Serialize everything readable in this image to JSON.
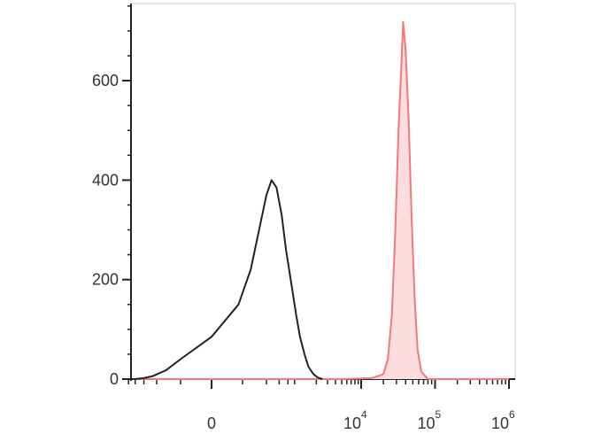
{
  "chart_data": {
    "type": "area",
    "title": "",
    "xlabel": "",
    "ylabel": "",
    "x_scale": "biexponential",
    "x_ticks": [
      {
        "value": 0,
        "base": "0",
        "exp": ""
      },
      {
        "value": 10000,
        "base": "10",
        "exp": "4"
      },
      {
        "value": 100000,
        "base": "10",
        "exp": "5"
      },
      {
        "value": 1000000,
        "base": "10",
        "exp": "6"
      }
    ],
    "y_ticks": [
      {
        "value": 0,
        "label": "0"
      },
      {
        "value": 200,
        "label": "200"
      },
      {
        "value": 400,
        "label": "400"
      },
      {
        "value": 600,
        "label": "600"
      }
    ],
    "ylim": [
      0,
      755
    ],
    "grid": false,
    "legend": "none",
    "series": [
      {
        "color": "#222222",
        "fill": "none",
        "x": [
          -700,
          -500,
          -350,
          -200,
          -100,
          0,
          80,
          150,
          220,
          300,
          370,
          450,
          550,
          650,
          800,
          950,
          1100,
          1300,
          1500,
          1800,
          2100,
          2500
        ],
        "y": [
          0,
          2,
          6,
          18,
          40,
          85,
          150,
          220,
          300,
          370,
          400,
          385,
          330,
          260,
          190,
          130,
          85,
          50,
          25,
          10,
          3,
          0
        ]
      },
      {
        "color": "#f07a7a",
        "fill": "#fcdcdc",
        "x": [
          -700,
          0,
          1000,
          5000,
          14000,
          20000,
          23000,
          26000,
          29000,
          32000,
          35000,
          37000,
          40000,
          44000,
          48000,
          53000,
          58000,
          65000,
          80000,
          1000000
        ],
        "y": [
          0,
          0,
          0,
          0,
          2,
          10,
          40,
          130,
          300,
          500,
          630,
          718,
          660,
          520,
          330,
          160,
          60,
          15,
          0,
          0
        ]
      }
    ]
  }
}
